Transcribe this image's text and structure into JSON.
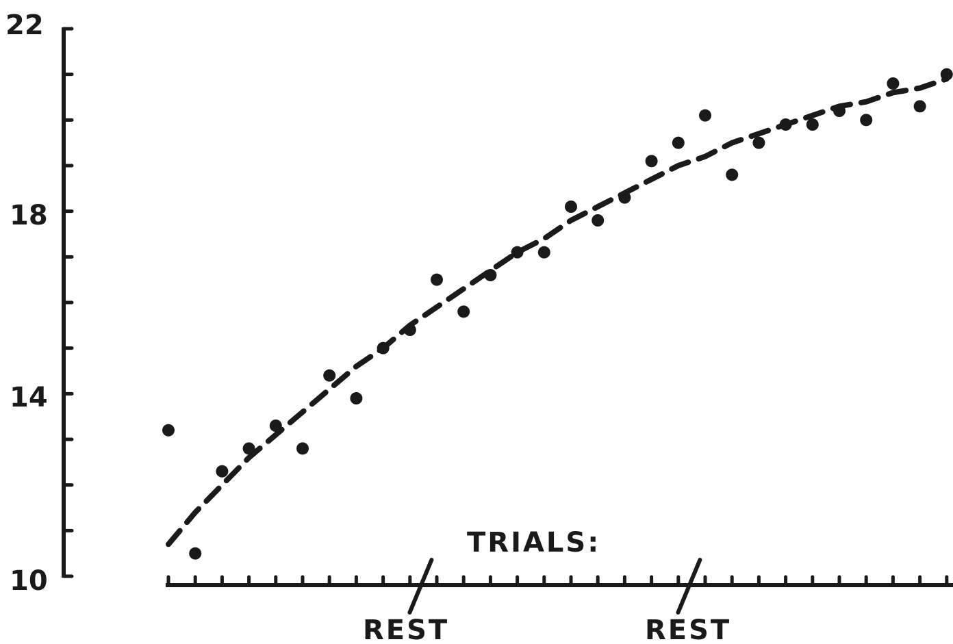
{
  "chart_data": {
    "type": "scatter",
    "title": "",
    "xlabel": "",
    "ylabel": "",
    "ylim": [
      10,
      22
    ],
    "y_ticks": [
      10,
      14,
      18,
      22
    ],
    "y_tick_labels": [
      "10",
      "14",
      "18",
      "22"
    ],
    "grid": false,
    "annotations": {
      "trials_label": "TRIALS:",
      "rest_label_1": "REST",
      "rest_label_2": "REST"
    },
    "rest_breaks_after_trial": [
      10,
      20
    ],
    "series": [
      {
        "values": [
          {
            "x": 1,
            "y": 13.2
          },
          {
            "x": 2,
            "y": 10.5
          },
          {
            "x": 3,
            "y": 12.3
          },
          {
            "x": 4,
            "y": 12.8
          },
          {
            "x": 5,
            "y": 13.3
          },
          {
            "x": 6,
            "y": 12.8
          },
          {
            "x": 7,
            "y": 14.4
          },
          {
            "x": 8,
            "y": 13.9
          },
          {
            "x": 9,
            "y": 15.0
          },
          {
            "x": 10,
            "y": 15.4
          },
          {
            "x": 11,
            "y": 16.5
          },
          {
            "x": 12,
            "y": 15.8
          },
          {
            "x": 13,
            "y": 16.6
          },
          {
            "x": 14,
            "y": 17.1
          },
          {
            "x": 15,
            "y": 17.1
          },
          {
            "x": 16,
            "y": 18.1
          },
          {
            "x": 17,
            "y": 17.8
          },
          {
            "x": 18,
            "y": 18.3
          },
          {
            "x": 19,
            "y": 19.1
          },
          {
            "x": 20,
            "y": 19.5
          },
          {
            "x": 21,
            "y": 20.1
          },
          {
            "x": 22,
            "y": 18.8
          },
          {
            "x": 23,
            "y": 19.5
          },
          {
            "x": 24,
            "y": 19.9
          },
          {
            "x": 25,
            "y": 19.9
          },
          {
            "x": 26,
            "y": 20.2
          },
          {
            "x": 27,
            "y": 20.0
          },
          {
            "x": 28,
            "y": 20.8
          },
          {
            "x": 29,
            "y": 20.3
          },
          {
            "x": 30,
            "y": 21.0
          }
        ]
      },
      {
        "style": "dashed",
        "values": [
          {
            "x": 1,
            "y": 10.7
          },
          {
            "x": 2,
            "y": 11.4
          },
          {
            "x": 3,
            "y": 12.0
          },
          {
            "x": 4,
            "y": 12.6
          },
          {
            "x": 5,
            "y": 13.1
          },
          {
            "x": 6,
            "y": 13.6
          },
          {
            "x": 7,
            "y": 14.1
          },
          {
            "x": 8,
            "y": 14.6
          },
          {
            "x": 9,
            "y": 15.0
          },
          {
            "x": 10,
            "y": 15.5
          },
          {
            "x": 11,
            "y": 15.9
          },
          {
            "x": 12,
            "y": 16.3
          },
          {
            "x": 13,
            "y": 16.7
          },
          {
            "x": 14,
            "y": 17.1
          },
          {
            "x": 15,
            "y": 17.4
          },
          {
            "x": 16,
            "y": 17.8
          },
          {
            "x": 17,
            "y": 18.1
          },
          {
            "x": 18,
            "y": 18.4
          },
          {
            "x": 19,
            "y": 18.7
          },
          {
            "x": 20,
            "y": 19.0
          },
          {
            "x": 21,
            "y": 19.2
          },
          {
            "x": 22,
            "y": 19.5
          },
          {
            "x": 23,
            "y": 19.7
          },
          {
            "x": 24,
            "y": 19.9
          },
          {
            "x": 25,
            "y": 20.1
          },
          {
            "x": 26,
            "y": 20.3
          },
          {
            "x": 27,
            "y": 20.4
          },
          {
            "x": 28,
            "y": 20.6
          },
          {
            "x": 29,
            "y": 20.7
          },
          {
            "x": 30,
            "y": 20.9
          }
        ]
      }
    ],
    "colors": {
      "ink": "#1a1a1a",
      "background": "#ffffff"
    }
  }
}
